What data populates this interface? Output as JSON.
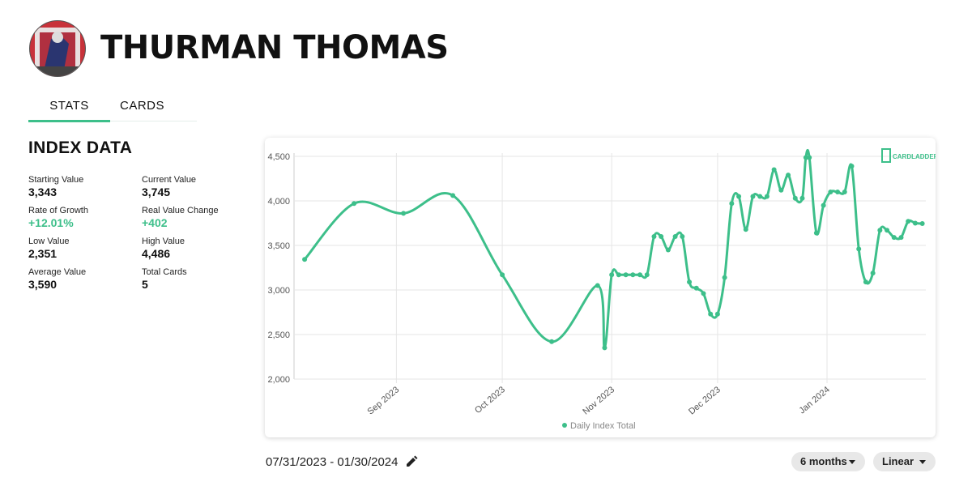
{
  "header": {
    "title": "THURMAN THOMAS"
  },
  "tabs": [
    "STATS",
    "CARDS"
  ],
  "index_data": {
    "title": "INDEX DATA",
    "stats": [
      {
        "label": "Starting Value",
        "value": "3,343"
      },
      {
        "label": "Current Value",
        "value": "3,745"
      },
      {
        "label": "Rate of Growth",
        "value": "+12.01%"
      },
      {
        "label": "Real Value Change",
        "value": "+402"
      },
      {
        "label": "Low Value",
        "value": "2,351"
      },
      {
        "label": "High Value",
        "value": "4,486"
      },
      {
        "label": "Average Value",
        "value": "3,590"
      },
      {
        "label": "Total Cards",
        "value": "5"
      }
    ]
  },
  "chart_data": {
    "type": "line",
    "watermark": "CARDLADDER",
    "x": [
      6,
      20,
      34,
      48,
      62,
      76,
      89,
      91,
      93,
      95,
      97,
      99,
      101,
      103,
      105,
      107,
      109,
      111,
      113,
      115,
      117,
      119,
      121,
      123,
      125,
      127,
      129,
      131,
      133,
      135,
      137,
      139,
      141,
      143,
      145,
      147,
      148,
      149,
      151,
      153,
      155,
      157,
      159,
      161,
      163,
      165,
      167,
      169,
      171,
      173,
      175,
      177,
      179,
      181
    ],
    "series": [
      {
        "name": "Daily Index Total",
        "color": "#3dbf8a",
        "values": [
          3343,
          3970,
          3860,
          4060,
          3170,
          2420,
          3050,
          2351,
          3170,
          3170,
          3170,
          3170,
          3170,
          3170,
          3600,
          3600,
          3450,
          3600,
          3600,
          3090,
          3020,
          2960,
          2730,
          2730,
          3140,
          3970,
          4050,
          3680,
          4050,
          4050,
          4050,
          4350,
          4120,
          4290,
          4030,
          4030,
          4486,
          4486,
          3640,
          3950,
          4100,
          4100,
          4100,
          4390,
          3460,
          3090,
          3190,
          3670,
          3670,
          3590,
          3590,
          3770,
          3750,
          3745
        ]
      }
    ],
    "xlim": [
      3,
      182
    ],
    "xticks": [
      {
        "value": 32,
        "label": "Sep 2023"
      },
      {
        "value": 62,
        "label": "Oct 2023"
      },
      {
        "value": 93,
        "label": "Nov 2023"
      },
      {
        "value": 123,
        "label": "Dec 2023"
      },
      {
        "value": 154,
        "label": "Jan 2024"
      }
    ],
    "ylim": [
      2000,
      4500
    ],
    "yticks": [
      {
        "value": 2000,
        "label": "2,000"
      },
      {
        "value": 2500,
        "label": "2,500"
      },
      {
        "value": 3000,
        "label": "3,000"
      },
      {
        "value": 3500,
        "label": "3,500"
      },
      {
        "value": 4000,
        "label": "4,000"
      },
      {
        "value": 4500,
        "label": "4,500"
      }
    ],
    "grid": true,
    "legend": "bottom"
  },
  "date_range": "07/31/2023 - 01/30/2024",
  "controls": [
    "6 months",
    "Linear"
  ]
}
